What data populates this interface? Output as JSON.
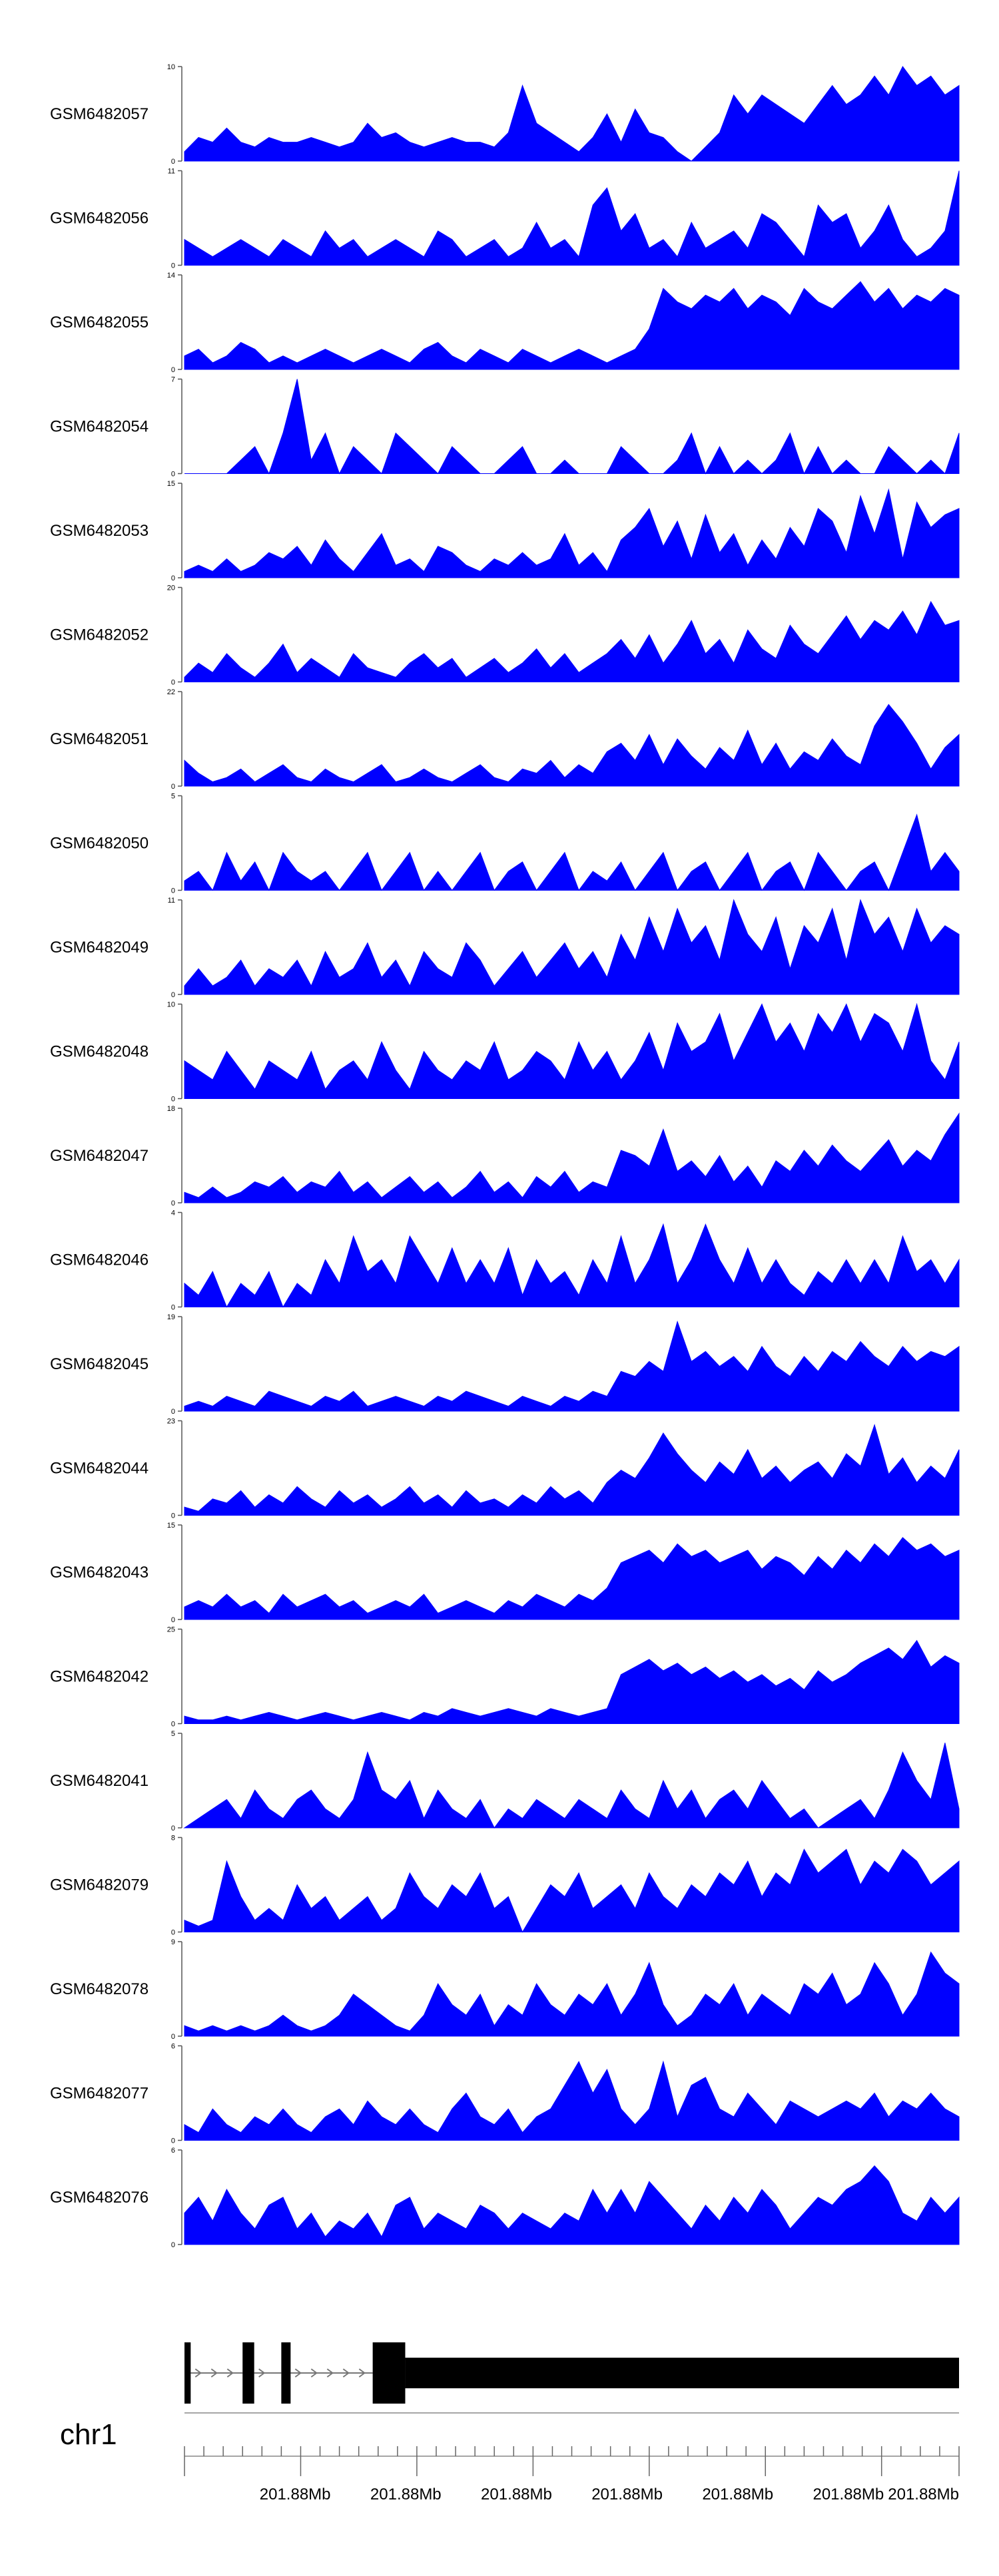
{
  "colors": {
    "signal": "#0000ff",
    "gene": "#000000",
    "axis": "#555555",
    "background": "#ffffff"
  },
  "chart_data": {
    "type": "area",
    "title": "",
    "xlabel": "",
    "ylabel": "",
    "chromosome": "chr1",
    "x_tick_labels": [
      "201.88Mb",
      "201.88Mb",
      "201.88Mb",
      "201.88Mb",
      "201.88Mb",
      "201.88Mb",
      "201.88Mb"
    ],
    "n_bins": 56,
    "tracks": [
      {
        "name": "GSM6482057",
        "ymin": 0,
        "ymax": 10,
        "values": [
          1,
          2.5,
          2,
          3.5,
          2,
          1.5,
          2.5,
          2,
          2,
          2.5,
          2,
          1.5,
          2,
          4,
          2.5,
          3,
          2,
          1.5,
          2,
          2.5,
          2,
          2,
          1.5,
          3,
          8,
          4,
          3,
          2,
          1,
          2.5,
          5,
          2,
          5.5,
          3,
          2.5,
          1,
          0,
          1.5,
          3,
          7,
          5,
          7,
          6,
          5,
          4,
          6,
          8,
          6,
          7,
          9,
          7,
          10,
          8,
          9,
          7,
          8
        ]
      },
      {
        "name": "GSM6482056",
        "ymin": 0,
        "ymax": 11,
        "values": [
          3,
          2,
          1,
          2,
          3,
          2,
          1,
          3,
          2,
          1,
          4,
          2,
          3,
          1,
          2,
          3,
          2,
          1,
          4,
          3,
          1,
          2,
          3,
          1,
          2,
          5,
          2,
          3,
          1,
          7,
          9,
          4,
          6,
          2,
          3,
          1,
          5,
          2,
          3,
          4,
          2,
          6,
          5,
          3,
          1,
          7,
          5,
          6,
          2,
          4,
          7,
          3,
          1,
          2,
          4,
          11
        ]
      },
      {
        "name": "GSM6482055",
        "ymin": 0,
        "ymax": 14,
        "values": [
          2,
          3,
          1,
          2,
          4,
          3,
          1,
          2,
          1,
          2,
          3,
          2,
          1,
          2,
          3,
          2,
          1,
          3,
          4,
          2,
          1,
          3,
          2,
          1,
          3,
          2,
          1,
          2,
          3,
          2,
          1,
          2,
          3,
          6,
          12,
          10,
          9,
          11,
          10,
          12,
          9,
          11,
          10,
          8,
          12,
          10,
          9,
          11,
          13,
          10,
          12,
          9,
          11,
          10,
          12,
          11
        ]
      },
      {
        "name": "GSM6482054",
        "ymin": 0,
        "ymax": 7,
        "values": [
          0,
          0,
          0,
          0,
          1,
          2,
          0,
          3,
          7,
          1,
          3,
          0,
          2,
          1,
          0,
          3,
          2,
          1,
          0,
          2,
          1,
          0,
          0,
          1,
          2,
          0,
          0,
          1,
          0,
          0,
          0,
          2,
          1,
          0,
          0,
          1,
          3,
          0,
          2,
          0,
          1,
          0,
          1,
          3,
          0,
          2,
          0,
          1,
          0,
          0,
          2,
          1,
          0,
          1,
          0,
          3
        ]
      },
      {
        "name": "GSM6482053",
        "ymin": 0,
        "ymax": 15,
        "values": [
          1,
          2,
          1,
          3,
          1,
          2,
          4,
          3,
          5,
          2,
          6,
          3,
          1,
          4,
          7,
          2,
          3,
          1,
          5,
          4,
          2,
          1,
          3,
          2,
          4,
          2,
          3,
          7,
          2,
          4,
          1,
          6,
          8,
          11,
          5,
          9,
          3,
          10,
          4,
          7,
          2,
          6,
          3,
          8,
          5,
          11,
          9,
          4,
          13,
          7,
          14,
          3,
          12,
          8,
          10,
          11
        ]
      },
      {
        "name": "GSM6482052",
        "ymin": 0,
        "ymax": 20,
        "values": [
          1,
          4,
          2,
          6,
          3,
          1,
          4,
          8,
          2,
          5,
          3,
          1,
          6,
          3,
          2,
          1,
          4,
          6,
          3,
          5,
          1,
          3,
          5,
          2,
          4,
          7,
          3,
          6,
          2,
          4,
          6,
          9,
          5,
          10,
          4,
          8,
          13,
          6,
          9,
          4,
          11,
          7,
          5,
          12,
          8,
          6,
          10,
          14,
          9,
          13,
          11,
          15,
          10,
          17,
          12,
          13
        ]
      },
      {
        "name": "GSM6482051",
        "ymin": 0,
        "ymax": 22,
        "values": [
          6,
          3,
          1,
          2,
          4,
          1,
          3,
          5,
          2,
          1,
          4,
          2,
          1,
          3,
          5,
          1,
          2,
          4,
          2,
          1,
          3,
          5,
          2,
          1,
          4,
          3,
          6,
          2,
          5,
          3,
          8,
          10,
          6,
          12,
          5,
          11,
          7,
          4,
          9,
          6,
          13,
          5,
          10,
          4,
          8,
          6,
          11,
          7,
          5,
          14,
          19,
          15,
          10,
          4,
          9,
          12
        ]
      },
      {
        "name": "GSM6482050",
        "ymin": 0,
        "ymax": 5,
        "values": [
          0.5,
          1,
          0,
          2,
          0.5,
          1.5,
          0,
          2,
          1,
          0.5,
          1,
          0,
          1,
          2,
          0,
          1,
          2,
          0,
          1,
          0,
          1,
          2,
          0,
          1,
          1.5,
          0,
          1,
          2,
          0,
          1,
          0.5,
          1.5,
          0,
          1,
          2,
          0,
          1,
          1.5,
          0,
          1,
          2,
          0,
          1,
          1.5,
          0,
          2,
          1,
          0,
          1,
          1.5,
          0,
          2,
          4,
          1,
          2,
          1
        ]
      },
      {
        "name": "GSM6482049",
        "ymin": 0,
        "ymax": 11,
        "values": [
          1,
          3,
          1,
          2,
          4,
          1,
          3,
          2,
          4,
          1,
          5,
          2,
          3,
          6,
          2,
          4,
          1,
          5,
          3,
          2,
          6,
          4,
          1,
          3,
          5,
          2,
          4,
          6,
          3,
          5,
          2,
          7,
          4,
          9,
          5,
          10,
          6,
          8,
          4,
          11,
          7,
          5,
          9,
          3,
          8,
          6,
          10,
          4,
          11,
          7,
          9,
          5,
          10,
          6,
          8,
          7
        ]
      },
      {
        "name": "GSM6482048",
        "ymin": 0,
        "ymax": 10,
        "values": [
          4,
          3,
          2,
          5,
          3,
          1,
          4,
          3,
          2,
          5,
          1,
          3,
          4,
          2,
          6,
          3,
          1,
          5,
          3,
          2,
          4,
          3,
          6,
          2,
          3,
          5,
          4,
          2,
          6,
          3,
          5,
          2,
          4,
          7,
          3,
          8,
          5,
          6,
          9,
          4,
          7,
          10,
          6,
          8,
          5,
          9,
          7,
          10,
          6,
          9,
          8,
          5,
          10,
          4,
          2,
          6
        ]
      },
      {
        "name": "GSM6482047",
        "ymin": 0,
        "ymax": 18,
        "values": [
          2,
          1,
          3,
          1,
          2,
          4,
          3,
          5,
          2,
          4,
          3,
          6,
          2,
          4,
          1,
          3,
          5,
          2,
          4,
          1,
          3,
          6,
          2,
          4,
          1,
          5,
          3,
          6,
          2,
          4,
          3,
          10,
          9,
          7,
          14,
          6,
          8,
          5,
          9,
          4,
          7,
          3,
          8,
          6,
          10,
          7,
          11,
          8,
          6,
          9,
          12,
          7,
          10,
          8,
          13,
          17
        ]
      },
      {
        "name": "GSM6482046",
        "ymin": 0,
        "ymax": 4,
        "values": [
          1,
          0.5,
          1.5,
          0,
          1,
          0.5,
          1.5,
          0,
          1,
          0.5,
          2,
          1,
          3,
          1.5,
          2,
          1,
          3,
          2,
          1,
          2.5,
          1,
          2,
          1,
          2.5,
          0.5,
          2,
          1,
          1.5,
          0.5,
          2,
          1,
          3,
          1,
          2,
          3.5,
          1,
          2,
          3.5,
          2,
          1,
          2.5,
          1,
          2,
          1,
          0.5,
          1.5,
          1,
          2,
          1,
          2,
          1,
          3,
          1.5,
          2,
          1,
          2
        ]
      },
      {
        "name": "GSM6482045",
        "ymin": 0,
        "ymax": 19,
        "values": [
          1,
          2,
          1,
          3,
          2,
          1,
          4,
          3,
          2,
          1,
          3,
          2,
          4,
          1,
          2,
          3,
          2,
          1,
          3,
          2,
          4,
          3,
          2,
          1,
          3,
          2,
          1,
          3,
          2,
          4,
          3,
          8,
          7,
          10,
          8,
          18,
          10,
          12,
          9,
          11,
          8,
          13,
          9,
          7,
          11,
          8,
          12,
          10,
          14,
          11,
          9,
          13,
          10,
          12,
          11,
          13
        ]
      },
      {
        "name": "GSM6482044",
        "ymin": 0,
        "ymax": 23,
        "values": [
          2,
          1,
          4,
          3,
          6,
          2,
          5,
          3,
          7,
          4,
          2,
          6,
          3,
          5,
          2,
          4,
          7,
          3,
          5,
          2,
          6,
          3,
          4,
          2,
          5,
          3,
          7,
          4,
          6,
          3,
          8,
          11,
          9,
          14,
          20,
          15,
          11,
          8,
          13,
          10,
          16,
          9,
          12,
          8,
          11,
          13,
          9,
          15,
          12,
          22,
          10,
          14,
          8,
          12,
          9,
          16
        ]
      },
      {
        "name": "GSM6482043",
        "ymin": 0,
        "ymax": 15,
        "values": [
          2,
          3,
          2,
          4,
          2,
          3,
          1,
          4,
          2,
          3,
          4,
          2,
          3,
          1,
          2,
          3,
          2,
          4,
          1,
          2,
          3,
          2,
          1,
          3,
          2,
          4,
          3,
          2,
          4,
          3,
          5,
          9,
          10,
          11,
          9,
          12,
          10,
          11,
          9,
          10,
          11,
          8,
          10,
          9,
          7,
          10,
          8,
          11,
          9,
          12,
          10,
          13,
          11,
          12,
          10,
          11
        ]
      },
      {
        "name": "GSM6482042",
        "ymin": 0,
        "ymax": 25,
        "values": [
          2,
          1,
          1,
          2,
          1,
          2,
          3,
          2,
          1,
          2,
          3,
          2,
          1,
          2,
          3,
          2,
          1,
          3,
          2,
          4,
          3,
          2,
          3,
          4,
          3,
          2,
          4,
          3,
          2,
          3,
          4,
          13,
          15,
          17,
          14,
          16,
          13,
          15,
          12,
          14,
          11,
          13,
          10,
          12,
          9,
          14,
          11,
          13,
          16,
          18,
          20,
          17,
          22,
          15,
          18,
          16
        ]
      },
      {
        "name": "GSM6482041",
        "ymin": 0,
        "ymax": 5,
        "values": [
          0,
          0.5,
          1,
          1.5,
          0.5,
          2,
          1,
          0.5,
          1.5,
          2,
          1,
          0.5,
          1.5,
          4,
          2,
          1.5,
          2.5,
          0.5,
          2,
          1,
          0.5,
          1.5,
          0,
          1,
          0.5,
          1.5,
          1,
          0.5,
          1.5,
          1,
          0.5,
          2,
          1,
          0.5,
          2.5,
          1,
          2,
          0.5,
          1.5,
          2,
          1,
          2.5,
          1.5,
          0.5,
          1,
          0,
          0.5,
          1,
          1.5,
          0.5,
          2,
          4,
          2.5,
          1.5,
          4.5,
          1
        ]
      },
      {
        "name": "GSM6482079",
        "ymin": 0,
        "ymax": 8,
        "values": [
          1,
          0.5,
          1,
          6,
          3,
          1,
          2,
          1,
          4,
          2,
          3,
          1,
          2,
          3,
          1,
          2,
          5,
          3,
          2,
          4,
          3,
          5,
          2,
          3,
          0,
          2,
          4,
          3,
          5,
          2,
          3,
          4,
          2,
          5,
          3,
          2,
          4,
          3,
          5,
          4,
          6,
          3,
          5,
          4,
          7,
          5,
          6,
          7,
          4,
          6,
          5,
          7,
          6,
          4,
          5,
          6
        ]
      },
      {
        "name": "GSM6482078",
        "ymin": 0,
        "ymax": 9,
        "values": [
          1,
          0.5,
          1,
          0.5,
          1,
          0.5,
          1,
          2,
          1,
          0.5,
          1,
          2,
          4,
          3,
          2,
          1,
          0.5,
          2,
          5,
          3,
          2,
          4,
          1,
          3,
          2,
          5,
          3,
          2,
          4,
          3,
          5,
          2,
          4,
          7,
          3,
          1,
          2,
          4,
          3,
          5,
          2,
          4,
          3,
          2,
          5,
          4,
          6,
          3,
          4,
          7,
          5,
          2,
          4,
          8,
          6,
          5
        ]
      },
      {
        "name": "GSM6482077",
        "ymin": 0,
        "ymax": 6,
        "values": [
          1,
          0.5,
          2,
          1,
          0.5,
          1.5,
          1,
          2,
          1,
          0.5,
          1.5,
          2,
          1,
          2.5,
          1.5,
          1,
          2,
          1,
          0.5,
          2,
          3,
          1.5,
          1,
          2,
          0.5,
          1.5,
          2,
          3.5,
          5,
          3,
          4.5,
          2,
          1,
          2,
          5,
          1.5,
          3.5,
          4,
          2,
          1.5,
          3,
          2,
          1,
          2.5,
          2,
          1.5,
          2,
          2.5,
          2,
          3,
          1.5,
          2.5,
          2,
          3,
          2,
          1.5
        ]
      },
      {
        "name": "GSM6482076",
        "ymin": 0,
        "ymax": 6,
        "values": [
          2,
          3,
          1.5,
          3.5,
          2,
          1,
          2.5,
          3,
          1,
          2,
          0.5,
          1.5,
          1,
          2,
          0.5,
          2.5,
          3,
          1,
          2,
          1.5,
          1,
          2.5,
          2,
          1,
          2,
          1.5,
          1,
          2,
          1.5,
          3.5,
          2,
          3.5,
          2,
          4,
          3,
          2,
          1,
          2.5,
          1.5,
          3,
          2,
          3.5,
          2.5,
          1,
          2,
          3,
          2.5,
          3.5,
          4,
          5,
          4,
          2,
          1.5,
          3,
          2,
          3
        ]
      }
    ]
  },
  "gene_model": {
    "exons": [
      [
        0.0,
        0.008
      ],
      [
        0.075,
        0.09
      ],
      [
        0.125,
        0.137
      ],
      [
        0.243,
        0.285
      ],
      [
        0.285,
        1.0
      ]
    ],
    "thick_start": 0.285,
    "introns": [
      [
        0.008,
        0.075
      ],
      [
        0.09,
        0.125
      ],
      [
        0.137,
        0.243
      ]
    ]
  }
}
